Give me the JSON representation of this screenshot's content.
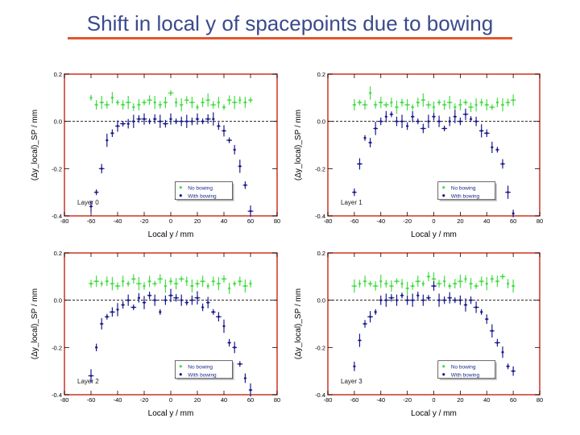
{
  "slide": {
    "title": "Shift in local y of spacepoints due to bowing"
  },
  "colors": {
    "no_bowing": "#44dd44",
    "with_bowing": "#1a1a8c",
    "frame": "#cc3322",
    "title_rule": "#e0562a",
    "title_text": "#3a4a8c"
  },
  "chart_data": [
    {
      "type": "scatter",
      "panel": "Layer 0",
      "xlabel": "Local y / mm",
      "ylabel": "(Δy_local)_SP / mm",
      "xlim": [
        -80,
        80
      ],
      "ylim": [
        -0.4,
        0.2
      ],
      "xticks": [
        "-80",
        "-60",
        "-40",
        "-20",
        "0",
        "20",
        "40",
        "60",
        "80"
      ],
      "yticks": [
        "0.2",
        "0.0",
        "-0.2",
        "-0.4"
      ],
      "reference_line_y": 0,
      "legend": "bottom-right",
      "annotation": "Layer 0",
      "series": [
        {
          "name": "No bowing",
          "x": [
            -60,
            -56,
            -52,
            -48,
            -44,
            -40,
            -36,
            -32,
            -28,
            -24,
            -20,
            -16,
            -12,
            -8,
            -4,
            0,
            4,
            8,
            12,
            16,
            20,
            24,
            28,
            32,
            36,
            40,
            44,
            48,
            52,
            56,
            60
          ],
          "y": [
            0.1,
            0.07,
            0.08,
            0.07,
            0.1,
            0.08,
            0.07,
            0.08,
            0.06,
            0.07,
            0.08,
            0.09,
            0.08,
            0.07,
            0.08,
            0.12,
            0.08,
            0.07,
            0.09,
            0.08,
            0.06,
            0.08,
            0.09,
            0.07,
            0.08,
            0.06,
            0.09,
            0.08,
            0.09,
            0.08,
            0.09
          ]
        },
        {
          "name": "With bowing",
          "x": [
            -60,
            -56,
            -52,
            -48,
            -44,
            -40,
            -36,
            -32,
            -28,
            -24,
            -20,
            -16,
            -12,
            -8,
            -4,
            0,
            4,
            8,
            12,
            16,
            20,
            24,
            28,
            32,
            36,
            40,
            44,
            48,
            52,
            56,
            60
          ],
          "y": [
            -0.36,
            -0.3,
            -0.2,
            -0.08,
            -0.05,
            -0.02,
            -0.01,
            -0.01,
            0.0,
            0.01,
            0.01,
            0.0,
            0.01,
            0.0,
            -0.01,
            0.01,
            0.0,
            0.0,
            0.0,
            0.0,
            0.01,
            0.0,
            0.01,
            0.01,
            -0.02,
            -0.04,
            -0.08,
            -0.12,
            -0.19,
            -0.27,
            -0.38
          ]
        }
      ]
    },
    {
      "type": "scatter",
      "panel": "Layer 1",
      "xlabel": "Local y / mm",
      "ylabel": "(Δy_local)_SP / mm",
      "xlim": [
        -80,
        80
      ],
      "ylim": [
        -0.4,
        0.2
      ],
      "xticks": [
        "-80",
        "-60",
        "-40",
        "-20",
        "0",
        "20",
        "40",
        "60",
        "80"
      ],
      "yticks": [
        "0.2",
        "0.0",
        "-0.2",
        "-0.4"
      ],
      "reference_line_y": 0,
      "legend": "bottom-right",
      "annotation": "Layer 1",
      "series": [
        {
          "name": "No bowing",
          "x": [
            -60,
            -56,
            -52,
            -48,
            -44,
            -40,
            -36,
            -32,
            -28,
            -24,
            -20,
            -16,
            -12,
            -8,
            -4,
            0,
            4,
            8,
            12,
            16,
            20,
            24,
            28,
            32,
            36,
            40,
            44,
            48,
            52,
            56,
            60
          ],
          "y": [
            0.07,
            0.08,
            0.07,
            0.12,
            0.07,
            0.08,
            0.07,
            0.08,
            0.06,
            0.08,
            0.07,
            0.06,
            0.08,
            0.09,
            0.07,
            0.06,
            0.08,
            0.07,
            0.08,
            0.06,
            0.07,
            0.08,
            0.06,
            0.07,
            0.08,
            0.07,
            0.06,
            0.08,
            0.07,
            0.08,
            0.09
          ]
        },
        {
          "name": "With bowing",
          "x": [
            -60,
            -56,
            -52,
            -48,
            -44,
            -40,
            -36,
            -32,
            -28,
            -24,
            -20,
            -16,
            -12,
            -8,
            -4,
            0,
            4,
            8,
            12,
            16,
            20,
            24,
            28,
            32,
            36,
            40,
            44,
            48,
            52,
            56,
            60
          ],
          "y": [
            -0.3,
            -0.18,
            -0.07,
            -0.09,
            -0.03,
            0.0,
            0.02,
            0.03,
            0.0,
            0.0,
            -0.02,
            0.02,
            0.0,
            -0.03,
            0.0,
            0.02,
            0.0,
            -0.03,
            0.0,
            0.02,
            0.0,
            0.03,
            0.01,
            0.0,
            -0.04,
            -0.05,
            -0.11,
            -0.12,
            -0.18,
            -0.3,
            -0.39
          ]
        }
      ]
    },
    {
      "type": "scatter",
      "panel": "Layer 2",
      "xlabel": "Local y / mm",
      "ylabel": "(Δy_local)_SP / mm",
      "xlim": [
        -80,
        80
      ],
      "ylim": [
        -0.4,
        0.2
      ],
      "xticks": [
        "-80",
        "-60",
        "-40",
        "-20",
        "0",
        "20",
        "40",
        "60",
        "80"
      ],
      "yticks": [
        "0.2",
        "0.0",
        "-0.2",
        "-0.4"
      ],
      "reference_line_y": 0,
      "legend": "bottom-right",
      "annotation": "Layer 2",
      "series": [
        {
          "name": "No bowing",
          "x": [
            -60,
            -56,
            -52,
            -48,
            -44,
            -40,
            -36,
            -32,
            -28,
            -24,
            -20,
            -16,
            -12,
            -8,
            -4,
            0,
            4,
            8,
            12,
            16,
            20,
            24,
            28,
            32,
            36,
            40,
            44,
            48,
            52,
            56,
            60
          ],
          "y": [
            0.07,
            0.08,
            0.07,
            0.08,
            0.07,
            0.06,
            0.08,
            0.07,
            0.09,
            0.07,
            0.06,
            0.08,
            0.07,
            0.09,
            0.06,
            0.08,
            0.07,
            0.09,
            0.08,
            0.06,
            0.07,
            0.08,
            0.06,
            0.08,
            0.07,
            0.09,
            0.05,
            0.07,
            0.08,
            0.06,
            0.07
          ]
        },
        {
          "name": "With bowing",
          "x": [
            -60,
            -56,
            -52,
            -48,
            -44,
            -40,
            -36,
            -32,
            -28,
            -24,
            -20,
            -16,
            -12,
            -8,
            -4,
            0,
            4,
            8,
            12,
            16,
            20,
            24,
            28,
            32,
            36,
            40,
            44,
            48,
            52,
            56,
            60
          ],
          "y": [
            -0.32,
            -0.2,
            -0.1,
            -0.07,
            -0.05,
            -0.04,
            -0.02,
            0.0,
            -0.03,
            0.01,
            -0.01,
            0.02,
            0.0,
            -0.05,
            0.0,
            0.02,
            0.01,
            0.0,
            -0.01,
            0.0,
            0.01,
            -0.03,
            -0.01,
            -0.05,
            -0.07,
            -0.11,
            -0.18,
            -0.2,
            -0.27,
            -0.33,
            -0.38
          ]
        }
      ]
    },
    {
      "type": "scatter",
      "panel": "Layer 3",
      "xlabel": "Local y / mm",
      "ylabel": "(Δy_local)_SP / mm",
      "xlim": [
        -80,
        80
      ],
      "ylim": [
        -0.4,
        0.2
      ],
      "xticks": [
        "-80",
        "-60",
        "-40",
        "-20",
        "0",
        "20",
        "40",
        "60",
        "80"
      ],
      "yticks": [
        "0.2",
        "0.0",
        "-0.2",
        "-0.4"
      ],
      "reference_line_y": 0,
      "legend": "bottom-right",
      "annotation": "Layer 3",
      "series": [
        {
          "name": "No bowing",
          "x": [
            -60,
            -56,
            -52,
            -48,
            -44,
            -40,
            -36,
            -32,
            -28,
            -24,
            -20,
            -16,
            -12,
            -8,
            -4,
            0,
            4,
            8,
            12,
            16,
            20,
            24,
            28,
            32,
            36,
            40,
            44,
            48,
            52,
            56,
            60
          ],
          "y": [
            0.06,
            0.07,
            0.08,
            0.07,
            0.06,
            0.08,
            0.07,
            0.06,
            0.08,
            0.07,
            0.05,
            0.06,
            0.08,
            0.07,
            0.1,
            0.09,
            0.07,
            0.08,
            0.06,
            0.07,
            0.08,
            0.09,
            0.07,
            0.06,
            0.08,
            0.07,
            0.09,
            0.08,
            0.1,
            0.07,
            0.06
          ]
        },
        {
          "name": "With bowing",
          "x": [
            -60,
            -56,
            -52,
            -48,
            -44,
            -40,
            -36,
            -32,
            -28,
            -24,
            -20,
            -16,
            -12,
            -8,
            -4,
            0,
            4,
            8,
            12,
            16,
            20,
            24,
            28,
            32,
            36,
            40,
            44,
            48,
            52,
            56,
            60
          ],
          "y": [
            -0.28,
            -0.17,
            -0.1,
            -0.07,
            -0.05,
            0.0,
            0.0,
            0.01,
            0.0,
            0.02,
            0.0,
            0.0,
            0.02,
            0.0,
            0.01,
            0.06,
            0.0,
            0.0,
            0.01,
            0.0,
            0.0,
            -0.02,
            0.0,
            -0.03,
            -0.05,
            -0.08,
            -0.13,
            -0.18,
            -0.22,
            -0.28,
            -0.3
          ]
        }
      ]
    }
  ]
}
